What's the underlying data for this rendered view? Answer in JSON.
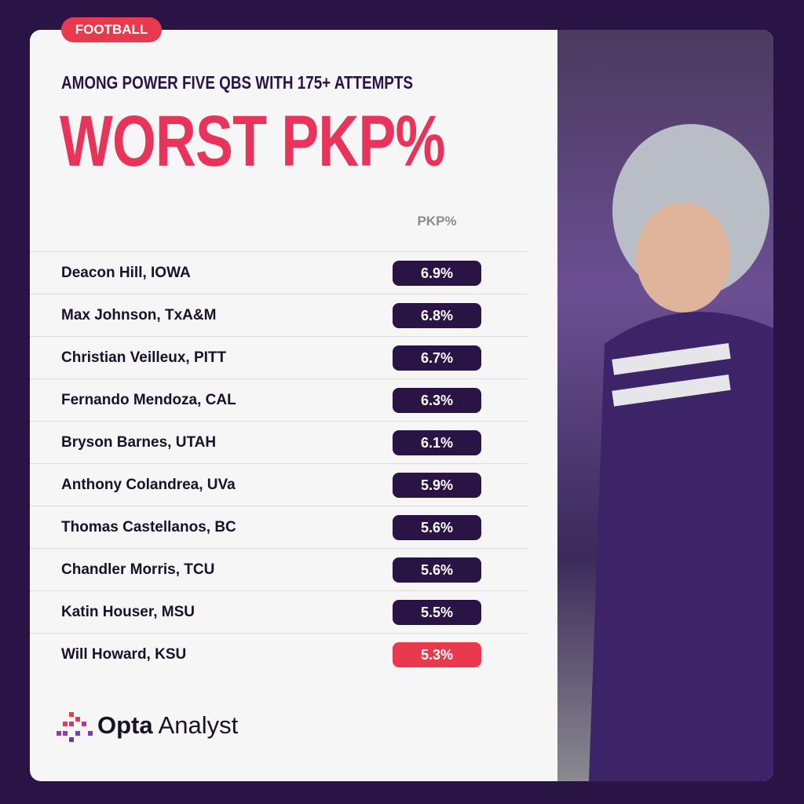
{
  "tag": "FOOTBALL",
  "subtitle": "AMONG POWER FIVE QBS WITH 175+ ATTEMPTS",
  "title": "WORST PKP%",
  "table": {
    "header": "PKP%",
    "rows": [
      {
        "name": "Deacon Hill, IOWA",
        "value": "6.9%",
        "color": "#2a1445"
      },
      {
        "name": "Max Johnson, TxA&M",
        "value": "6.8%",
        "color": "#2a1445"
      },
      {
        "name": "Christian Veilleux, PITT",
        "value": "6.7%",
        "color": "#2a1445"
      },
      {
        "name": "Fernando Mendoza, CAL",
        "value": "6.3%",
        "color": "#2a1445"
      },
      {
        "name": "Bryson Barnes, UTAH",
        "value": "6.1%",
        "color": "#2a1445"
      },
      {
        "name": "Anthony Colandrea, UVa",
        "value": "5.9%",
        "color": "#2a1445"
      },
      {
        "name": "Thomas Castellanos, BC",
        "value": "5.6%",
        "color": "#2a1445"
      },
      {
        "name": "Chandler Morris, TCU",
        "value": "5.6%",
        "color": "#2a1445"
      },
      {
        "name": "Katin Houser, MSU",
        "value": "5.5%",
        "color": "#2a1445"
      },
      {
        "name": "Will Howard, KSU",
        "value": "5.3%",
        "color": "#e8394d"
      }
    ]
  },
  "brand": {
    "name": "Opta",
    "suffix": "Analyst"
  }
}
